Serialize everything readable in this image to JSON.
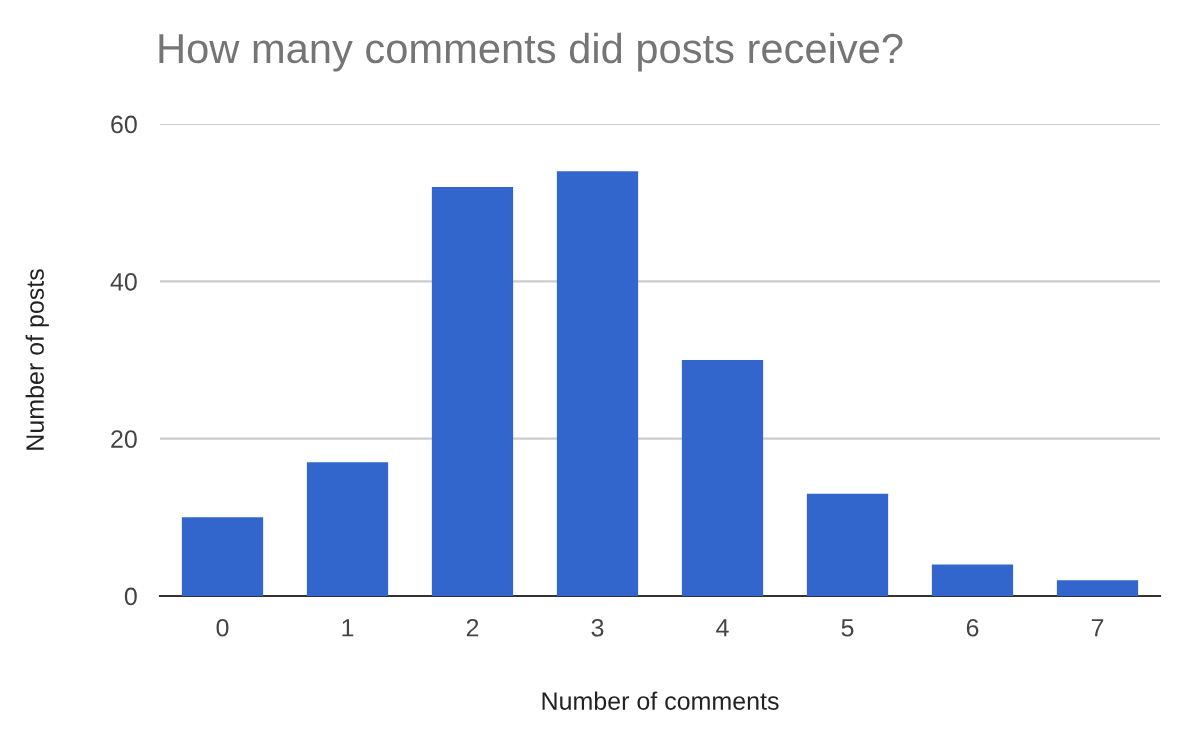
{
  "chart_data": {
    "type": "bar",
    "title": "How many comments did posts receive?",
    "xlabel": "Number of comments",
    "ylabel": "Number of posts",
    "categories": [
      "0",
      "1",
      "2",
      "3",
      "4",
      "5",
      "6",
      "7"
    ],
    "values": [
      10,
      17,
      52,
      54,
      30,
      13,
      4,
      2
    ],
    "color": "#3366cc",
    "ylim": [
      0,
      60
    ],
    "yticks": [
      0,
      20,
      40,
      60
    ],
    "grid": "y",
    "legend": false
  }
}
